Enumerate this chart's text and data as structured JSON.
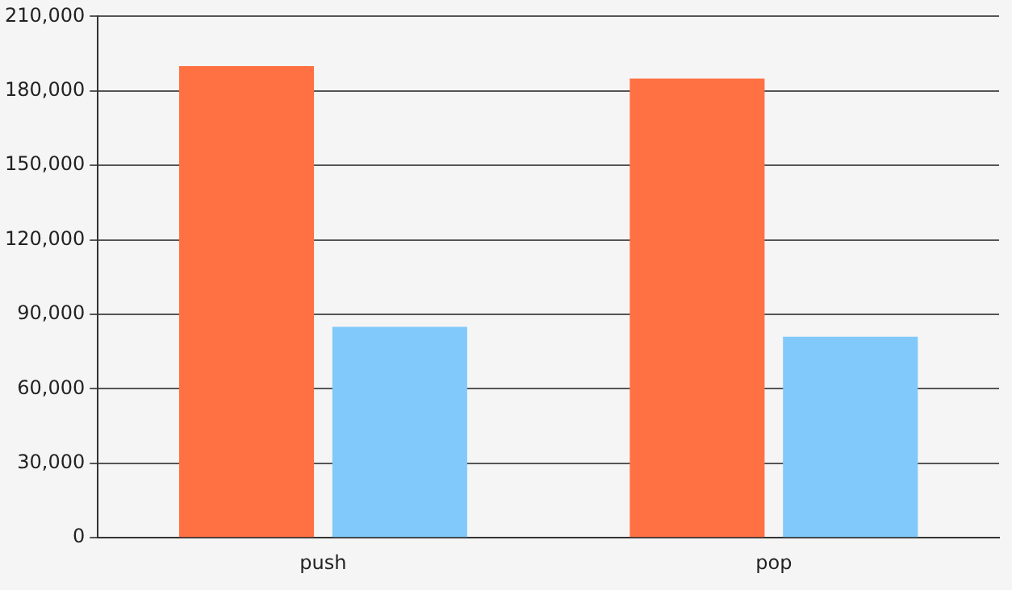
{
  "chart_data": {
    "type": "bar",
    "categories": [
      "push",
      "pop"
    ],
    "series": [
      {
        "color": "#ff7043",
        "values": [
          190000,
          185000
        ]
      },
      {
        "color": "#81c9fa",
        "values": [
          85000,
          81000
        ]
      }
    ],
    "ylim": [
      0,
      210000
    ],
    "yticks": [
      {
        "value": 0,
        "label": "0"
      },
      {
        "value": 30000,
        "label": "30,000"
      },
      {
        "value": 60000,
        "label": "60,000"
      },
      {
        "value": 90000,
        "label": "90,000"
      },
      {
        "value": 120000,
        "label": "120,000"
      },
      {
        "value": 150000,
        "label": "150,000"
      },
      {
        "value": 180000,
        "label": "180,000"
      },
      {
        "value": 210000,
        "label": "210,000"
      }
    ],
    "grid": "y",
    "legend": false
  }
}
